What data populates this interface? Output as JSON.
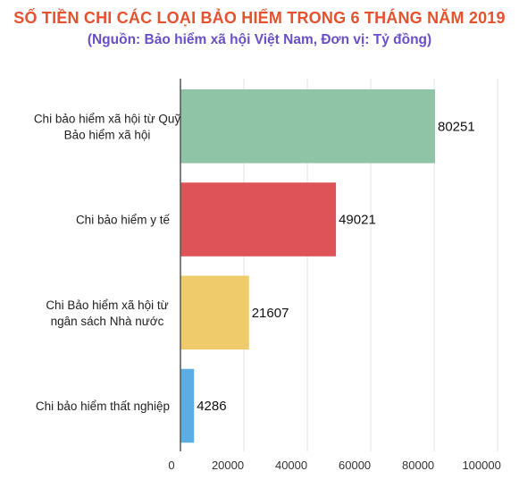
{
  "chart_data": {
    "type": "bar",
    "orientation": "horizontal",
    "title": "SỐ TIỀN CHI CÁC LOẠI BẢO HIỂM TRONG 6 THÁNG NĂM 2019",
    "subtitle": "(Nguồn:  Bảo hiểm xã hội Việt Nam, Đơn vị: Tỷ đồng)",
    "categories": [
      [
        "Chi bảo hiểm xã hội từ Quỹ",
        "Bảo hiểm xã hội"
      ],
      [
        "Chi bảo hiểm y tế"
      ],
      [
        "Chi Bảo hiểm xã hội từ",
        "ngân sách Nhà nước"
      ],
      [
        "Chi bảo hiểm thất nghiệp"
      ]
    ],
    "values": [
      80251,
      49021,
      21607,
      4286
    ],
    "colors": [
      "#8fc4a6",
      "#de5357",
      "#f0cb6b",
      "#5baee3"
    ],
    "xlim": [
      0,
      100000
    ],
    "xticks": [
      "0",
      "20000",
      "40000",
      "60000",
      "80000",
      "100000"
    ],
    "xtick_values": [
      0,
      20000,
      40000,
      60000,
      80000,
      100000
    ],
    "grid": true,
    "legend": "none"
  }
}
